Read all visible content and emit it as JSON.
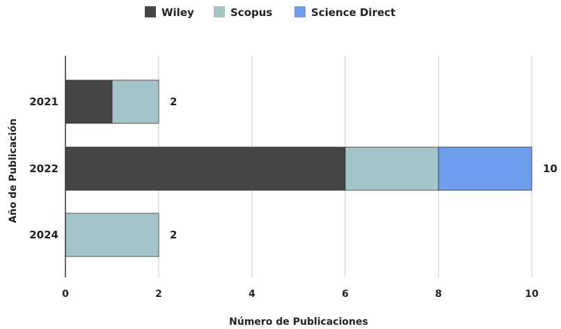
{
  "chart_data": {
    "type": "bar",
    "orientation": "horizontal",
    "stacked": true,
    "categories": [
      "2021",
      "2022",
      "2024"
    ],
    "series": [
      {
        "name": "Wiley",
        "values": [
          1,
          6,
          0
        ],
        "color": "#444444"
      },
      {
        "name": "Scopus",
        "values": [
          1,
          2,
          2
        ],
        "color": "#a3c4c9"
      },
      {
        "name": "Science Direct",
        "values": [
          0,
          2,
          0
        ],
        "color": "#6d9eeb"
      }
    ],
    "totals": [
      "2",
      "10",
      "2"
    ],
    "xlabel": "Número de Publicaciones",
    "ylabel": "Año de Publicación",
    "xlim": [
      0,
      10
    ],
    "xticks": [
      0,
      2,
      4,
      6,
      8,
      10
    ],
    "grid": true,
    "legend_position": "top-center"
  }
}
